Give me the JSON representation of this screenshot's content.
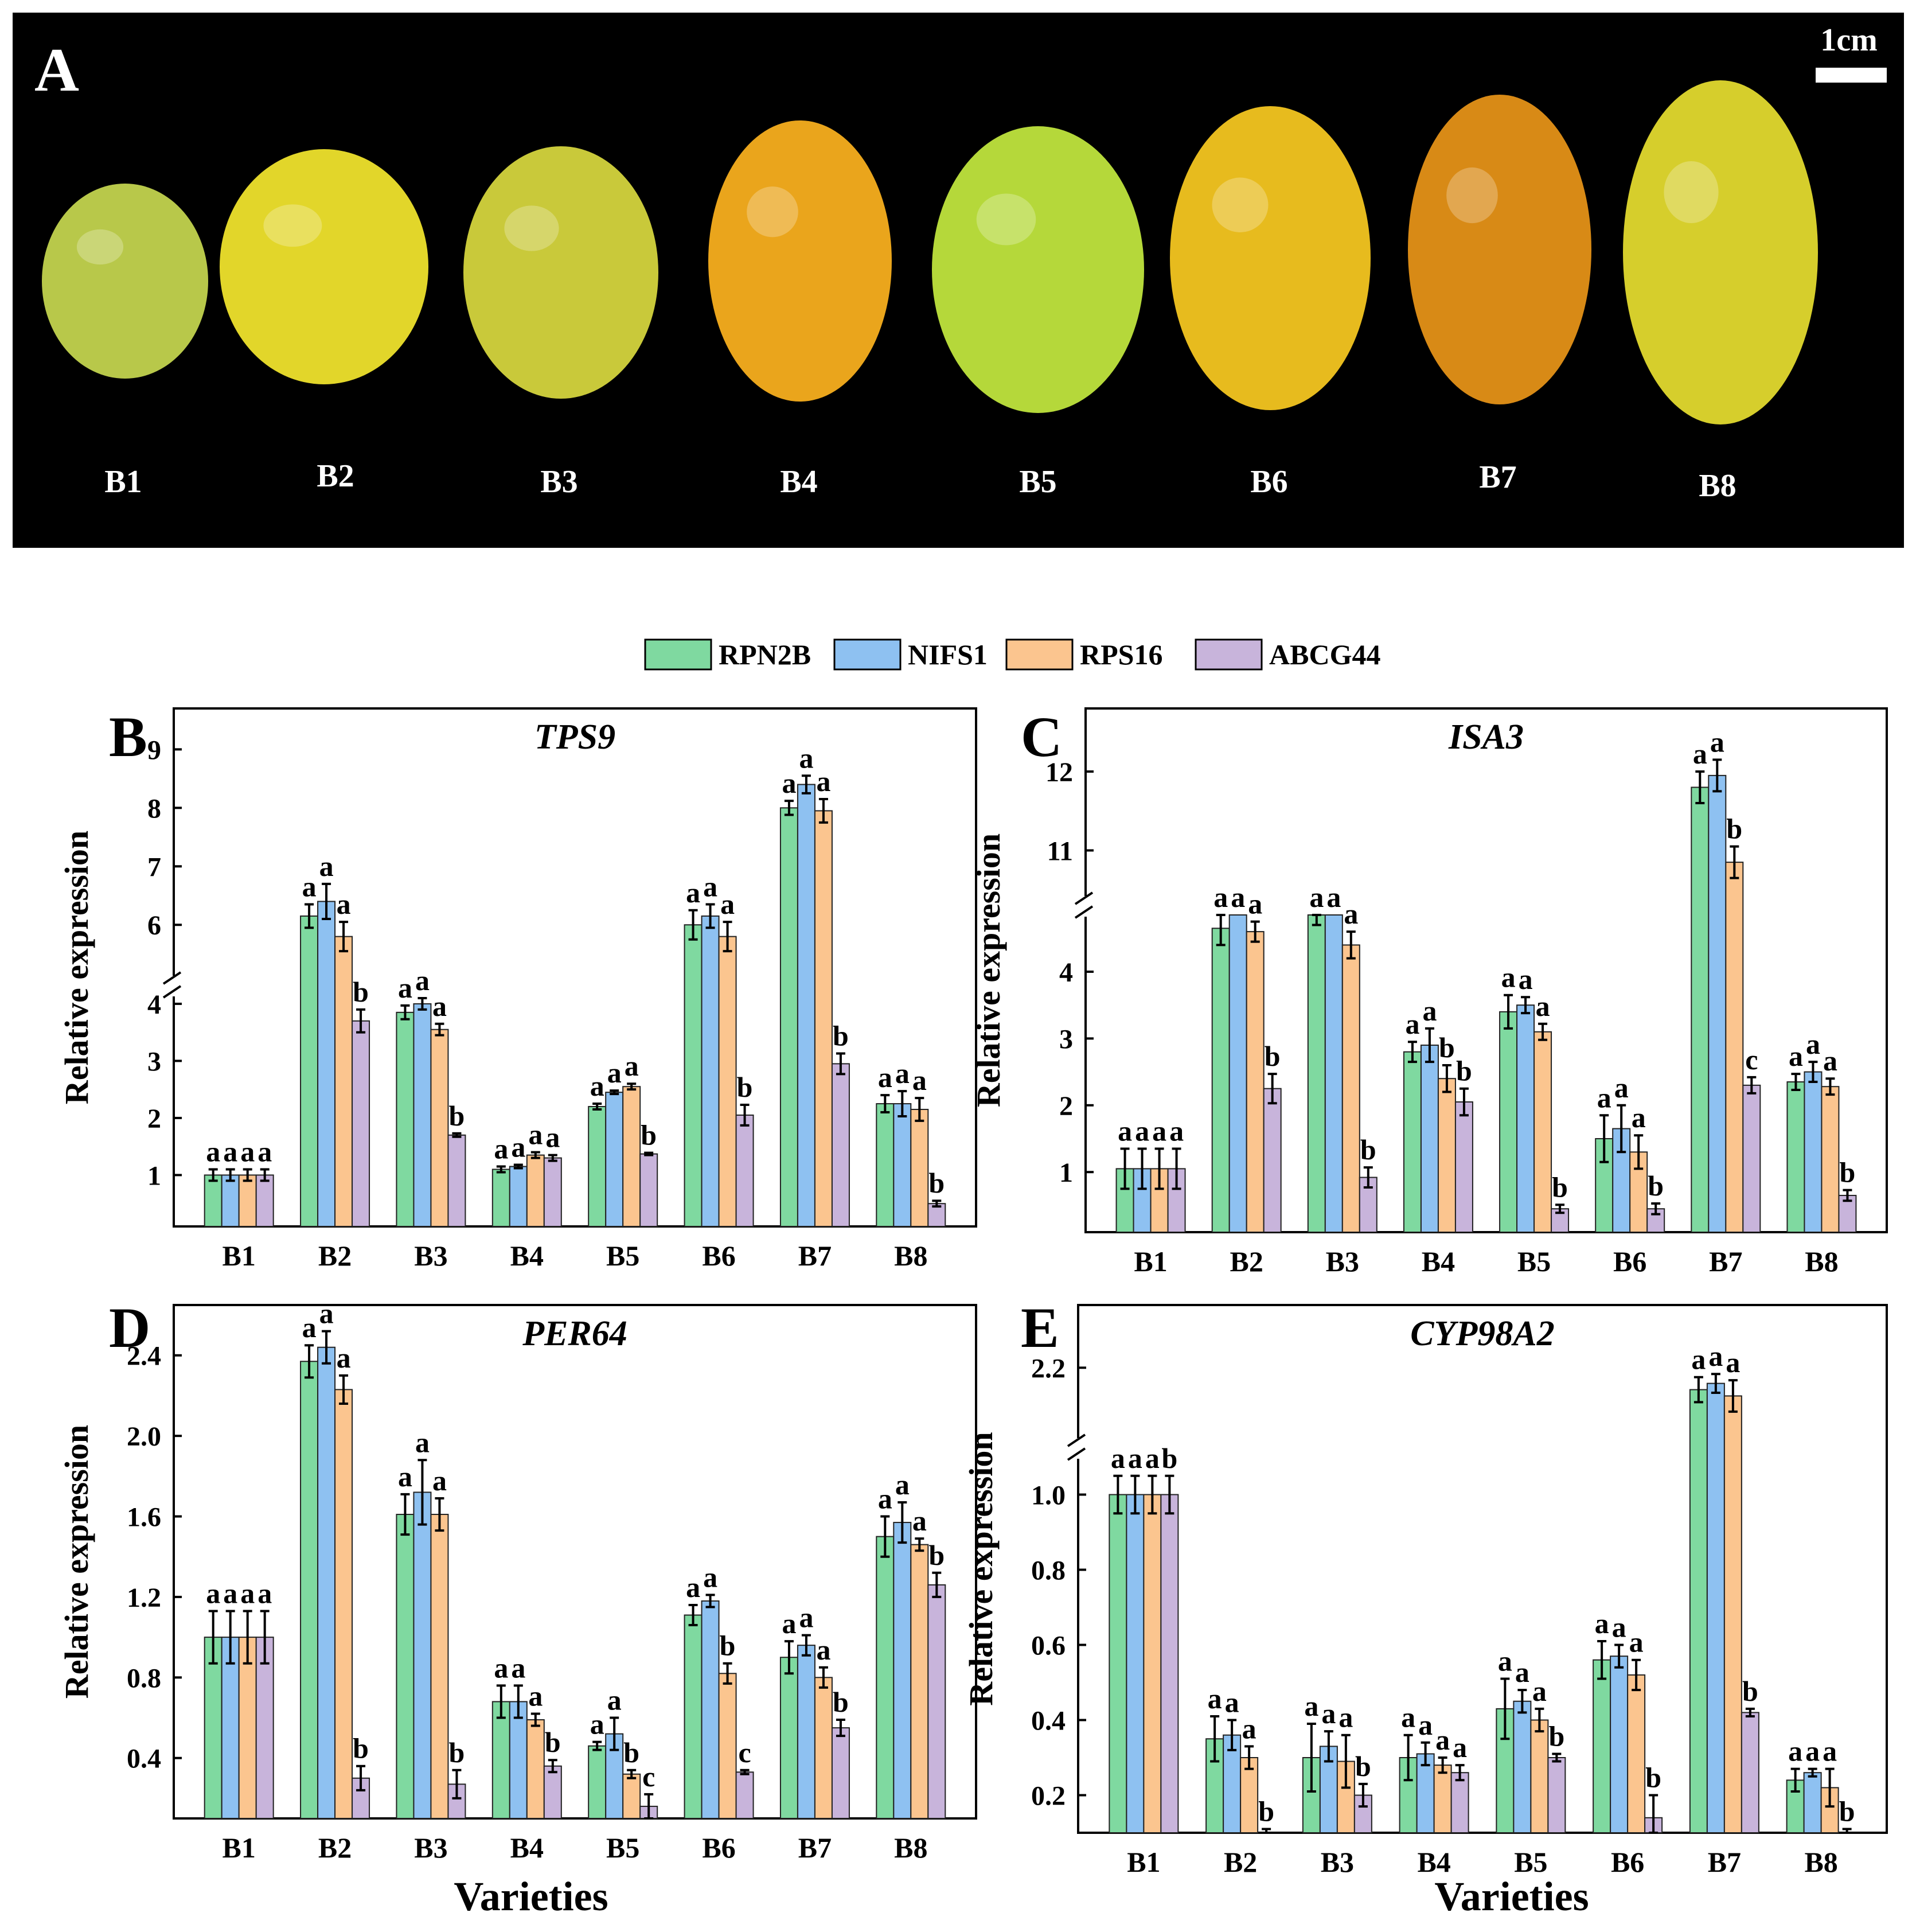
{
  "panel_a": {
    "letter": "A",
    "scale_label": "1cm",
    "fruits": [
      {
        "label": "B1",
        "color": "#b8c84a"
      },
      {
        "label": "B2",
        "color": "#e2d62a"
      },
      {
        "label": "B3",
        "color": "#c9c93a"
      },
      {
        "label": "B4",
        "color": "#eaa51c"
      },
      {
        "label": "B5",
        "color": "#b5d83a"
      },
      {
        "label": "B6",
        "color": "#e7bb1e"
      },
      {
        "label": "B7",
        "color": "#d88a16"
      },
      {
        "label": "B8",
        "color": "#d6ce2c"
      }
    ]
  },
  "legend": [
    {
      "name": "RPN2B",
      "color": "#7fd9a0"
    },
    {
      "name": "NIFS1",
      "color": "#8ec1f1"
    },
    {
      "name": "RPS16",
      "color": "#fbc58f"
    },
    {
      "name": "ABCG44",
      "color": "#c8b4db"
    }
  ],
  "xlabel": "Varieties",
  "chart_data": [
    {
      "type": "bar",
      "panel": "B",
      "title": "TPS9",
      "ylabel": "Relative expression",
      "categories": [
        "B1",
        "B2",
        "B3",
        "B4",
        "B5",
        "B6",
        "B7",
        "B8"
      ],
      "axis_breaks": "between 4 and 6",
      "yticks": [
        "1",
        "2",
        "3",
        "4",
        "6",
        "7",
        "8",
        "9"
      ],
      "series": [
        {
          "name": "RPN2B",
          "values": [
            1.0,
            6.15,
            3.85,
            1.1,
            2.2,
            6.0,
            8.0,
            2.25
          ],
          "errors": [
            0.1,
            0.2,
            0.12,
            0.05,
            0.05,
            0.25,
            0.12,
            0.15
          ],
          "letters": [
            "a",
            "a",
            "a",
            "a",
            "a",
            "a",
            "a",
            "a"
          ]
        },
        {
          "name": "NIFS1",
          "values": [
            1.0,
            6.4,
            4.0,
            1.15,
            2.45,
            6.15,
            8.4,
            2.25
          ],
          "errors": [
            0.1,
            0.3,
            0.1,
            0.03,
            0.03,
            0.2,
            0.15,
            0.22
          ],
          "letters": [
            "a",
            "a",
            "a",
            "a",
            "a",
            "a",
            "a",
            "a"
          ]
        },
        {
          "name": "RPS16",
          "values": [
            1.0,
            5.8,
            3.55,
            1.35,
            2.55,
            5.8,
            7.95,
            2.15
          ],
          "errors": [
            0.1,
            0.25,
            0.1,
            0.05,
            0.05,
            0.25,
            0.2,
            0.2
          ],
          "letters": [
            "a",
            "a",
            "a",
            "a",
            "a",
            "a",
            "a",
            "a"
          ]
        },
        {
          "name": "ABCG44",
          "values": [
            1.0,
            3.7,
            1.7,
            1.3,
            1.37,
            2.05,
            2.95,
            0.5
          ],
          "errors": [
            0.1,
            0.2,
            0.03,
            0.05,
            0.02,
            0.18,
            0.18,
            0.05
          ],
          "letters": [
            "a",
            "b",
            "b",
            "a",
            "b",
            "b",
            "b",
            "b"
          ]
        }
      ]
    },
    {
      "type": "bar",
      "panel": "C",
      "title": "ISA3",
      "ylabel": "Relative expression",
      "categories": [
        "B1",
        "B2",
        "B3",
        "B4",
        "B5",
        "B6",
        "B7",
        "B8"
      ],
      "axis_breaks": "between 4 and 11",
      "yticks": [
        "1",
        "2",
        "3",
        "4",
        "11",
        "12"
      ],
      "series": [
        {
          "name": "RPN2B",
          "values": [
            1.05,
            4.65,
            4.85,
            2.8,
            3.4,
            1.5,
            11.8,
            2.35
          ],
          "errors": [
            0.3,
            0.25,
            0.15,
            0.15,
            0.25,
            0.35,
            0.2,
            0.12
          ],
          "letters": [
            "a",
            "a",
            "a",
            "a",
            "a",
            "a",
            "a",
            "a"
          ]
        },
        {
          "name": "NIFS1",
          "values": [
            1.05,
            5.0,
            5.0,
            2.9,
            3.5,
            1.65,
            11.95,
            2.5
          ],
          "errors": [
            0.3,
            0.0,
            0.0,
            0.25,
            0.12,
            0.35,
            0.2,
            0.15
          ],
          "letters": [
            "a",
            "a",
            "a",
            "a",
            "a",
            "a",
            "a",
            "a"
          ]
        },
        {
          "name": "RPS16",
          "values": [
            1.05,
            4.6,
            4.4,
            2.4,
            3.1,
            1.3,
            10.85,
            2.28
          ],
          "errors": [
            0.3,
            0.15,
            0.2,
            0.2,
            0.12,
            0.25,
            0.2,
            0.12
          ],
          "letters": [
            "a",
            "a",
            "a",
            "b",
            "a",
            "a",
            "b",
            "a"
          ]
        },
        {
          "name": "ABCG44",
          "values": [
            1.05,
            2.25,
            0.92,
            2.05,
            0.45,
            0.45,
            2.3,
            0.65
          ],
          "errors": [
            0.3,
            0.22,
            0.15,
            0.2,
            0.06,
            0.08,
            0.12,
            0.08
          ],
          "letters": [
            "a",
            "b",
            "b",
            "b",
            "b",
            "b",
            "c",
            "b"
          ]
        }
      ]
    },
    {
      "type": "bar",
      "panel": "D",
      "title": "PER64",
      "ylabel": "Relative expression",
      "xlabel": "Varieties",
      "categories": [
        "B1",
        "B2",
        "B3",
        "B4",
        "B5",
        "B6",
        "B7",
        "B8"
      ],
      "ylim": [
        0.1,
        2.65
      ],
      "yticks": [
        "0.4",
        "0.8",
        "1.2",
        "1.6",
        "2.0",
        "2.4"
      ],
      "series": [
        {
          "name": "RPN2B",
          "values": [
            1.0,
            2.37,
            1.61,
            0.68,
            0.46,
            1.11,
            0.9,
            1.5
          ],
          "errors": [
            0.13,
            0.08,
            0.1,
            0.08,
            0.02,
            0.05,
            0.08,
            0.1
          ],
          "letters": [
            "a",
            "a",
            "a",
            "a",
            "a",
            "a",
            "a",
            "a"
          ]
        },
        {
          "name": "NIFS1",
          "values": [
            1.0,
            2.44,
            1.72,
            0.68,
            0.52,
            1.18,
            0.96,
            1.57
          ],
          "errors": [
            0.13,
            0.08,
            0.16,
            0.08,
            0.08,
            0.03,
            0.05,
            0.1
          ],
          "letters": [
            "a",
            "a",
            "a",
            "a",
            "a",
            "a",
            "a",
            "a"
          ]
        },
        {
          "name": "RPS16",
          "values": [
            1.0,
            2.23,
            1.61,
            0.59,
            0.32,
            0.82,
            0.8,
            1.46
          ],
          "errors": [
            0.13,
            0.07,
            0.08,
            0.03,
            0.02,
            0.05,
            0.05,
            0.03
          ],
          "letters": [
            "a",
            "a",
            "a",
            "a",
            "b",
            "b",
            "a",
            "a"
          ]
        },
        {
          "name": "ABCG44",
          "values": [
            1.0,
            0.3,
            0.27,
            0.36,
            0.16,
            0.33,
            0.55,
            1.26
          ],
          "errors": [
            0.13,
            0.06,
            0.07,
            0.03,
            0.06,
            0.01,
            0.04,
            0.06
          ],
          "letters": [
            "a",
            "b",
            "b",
            "b",
            "c",
            "c",
            "b",
            "b"
          ]
        }
      ]
    },
    {
      "type": "bar",
      "panel": "E",
      "title": "CYP98A2",
      "ylabel": "Relative expression",
      "xlabel": "Varieties",
      "categories": [
        "B1",
        "B2",
        "B3",
        "B4",
        "B5",
        "B6",
        "B7",
        "B8"
      ],
      "axis_breaks": "between 1.0 and 2.2",
      "yticks": [
        "0.2",
        "0.4",
        "0.6",
        "0.8",
        "1.0",
        "2.2"
      ],
      "series": [
        {
          "name": "RPN2B",
          "values": [
            1.0,
            0.35,
            0.3,
            0.3,
            0.43,
            0.56,
            2.13,
            0.24
          ],
          "errors": [
            0.05,
            0.06,
            0.09,
            0.06,
            0.08,
            0.05,
            0.04,
            0.03
          ],
          "letters": [
            "a",
            "a",
            "a",
            "a",
            "a",
            "a",
            "a",
            "a"
          ]
        },
        {
          "name": "NIFS1",
          "values": [
            1.0,
            0.36,
            0.33,
            0.31,
            0.45,
            0.57,
            2.15,
            0.26
          ],
          "errors": [
            0.05,
            0.04,
            0.04,
            0.03,
            0.03,
            0.03,
            0.03,
            0.01
          ],
          "letters": [
            "a",
            "a",
            "a",
            "a",
            "a",
            "a",
            "a",
            "a"
          ]
        },
        {
          "name": "RPS16",
          "values": [
            1.0,
            0.3,
            0.29,
            0.28,
            0.4,
            0.52,
            2.11,
            0.22
          ],
          "errors": [
            0.05,
            0.03,
            0.07,
            0.02,
            0.03,
            0.04,
            0.05,
            0.05
          ],
          "letters": [
            "a",
            "a",
            "a",
            "a",
            "a",
            "a",
            "a",
            "a"
          ]
        },
        {
          "name": "ABCG44",
          "values": [
            1.0,
            0.1,
            0.2,
            0.26,
            0.3,
            0.14,
            0.42,
            0.09
          ],
          "errors": [
            0.05,
            0.01,
            0.03,
            0.02,
            0.01,
            0.06,
            0.01,
            0.02
          ],
          "letters": [
            "b",
            "b",
            "b",
            "a",
            "b",
            "b",
            "b",
            "b"
          ]
        }
      ]
    }
  ]
}
